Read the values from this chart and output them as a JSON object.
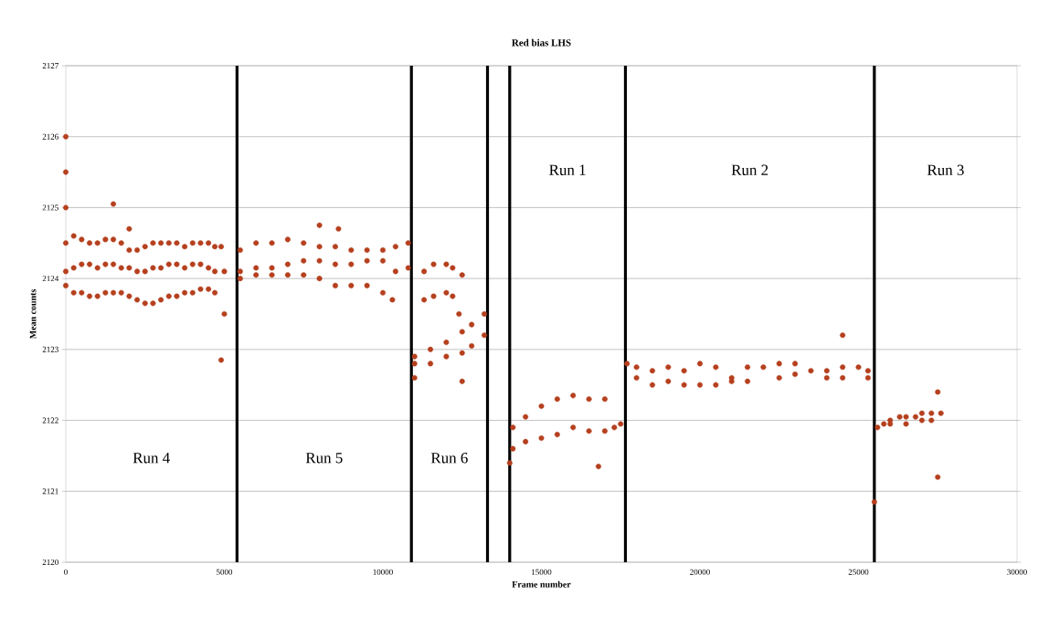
{
  "chart_data": {
    "type": "scatter",
    "title": "Red bias LHS",
    "xlabel": "Frame number",
    "ylabel": "Mean counts",
    "xlim": [
      0,
      30000
    ],
    "xticks": [
      0,
      5000,
      10000,
      15000,
      20000,
      25000,
      30000
    ],
    "ylim": [
      2120,
      2127
    ],
    "yticks": [
      2120,
      2121,
      2122,
      2123,
      2124,
      2125,
      2126,
      2127
    ],
    "grid": "y",
    "marker": "circle",
    "series": [
      {
        "color": "#b5401e",
        "x": [
          0,
          0,
          0,
          0,
          500,
          1000,
          1500,
          2000,
          2500,
          3000,
          3500,
          4000,
          4500,
          4900,
          0,
          500,
          1000,
          1500,
          2000,
          2500,
          3000,
          3500,
          4000,
          4500,
          5000,
          0,
          500,
          1000,
          1500,
          2000,
          2500,
          3000,
          3500,
          4000,
          4500,
          5000,
          1500,
          2000,
          4900,
          5500,
          6000,
          7000,
          8000,
          9000,
          10000,
          10800,
          5500,
          6500,
          7500,
          8500,
          9500,
          10800,
          5500,
          6500,
          7500,
          8500,
          9500,
          10300,
          8000,
          8600,
          11000,
          11300,
          12000,
          12500,
          11300,
          12000,
          12400,
          11000,
          12000,
          13200,
          11000,
          11500,
          12500,
          13200,
          12500,
          14100,
          15000,
          16000,
          17000,
          14100,
          15000,
          16000,
          17000,
          17500,
          16800,
          14000,
          17700,
          18500,
          19000,
          20000,
          21000,
          22000,
          23000,
          24000,
          24500,
          25300,
          18000,
          19500,
          20500,
          21500,
          22500,
          24000,
          25300,
          24500,
          25600,
          26000,
          26500,
          27000,
          27600,
          26000,
          27000,
          27500,
          27500,
          25500,
          250,
          750,
          1250,
          1750,
          2250,
          2750,
          3250,
          3750,
          4250,
          4700,
          250,
          750,
          1250,
          1750,
          2250,
          2750,
          3250,
          3750,
          4250,
          4700,
          250,
          750,
          1250,
          1750,
          2250,
          2750,
          3250,
          3750,
          4250,
          4700,
          6500,
          7500,
          8500,
          9500,
          10400,
          6000,
          7000,
          8000,
          9000,
          10000,
          10400,
          6000,
          7000,
          8000,
          9000,
          10000,
          11600,
          12200,
          11600,
          12200,
          11500,
          12500,
          12800,
          12000,
          12800,
          14500,
          15500,
          16500,
          14500,
          15500,
          16500,
          17300,
          18000,
          19500,
          20500,
          21500,
          22500,
          23500,
          25000,
          18500,
          19000,
          20000,
          21000,
          23000,
          24500,
          25800,
          26300,
          26800,
          27300,
          26500,
          27300
        ],
        "values": [
          2126,
          2125.5,
          2125,
          2124.5,
          2124.55,
          2124.5,
          2124.55,
          2124.4,
          2124.45,
          2124.5,
          2124.5,
          2124.5,
          2124.5,
          2124.45,
          2124.1,
          2124.2,
          2124.15,
          2124.2,
          2124.15,
          2124.1,
          2124.15,
          2124.2,
          2124.2,
          2124.15,
          2124.1,
          2123.9,
          2123.8,
          2123.75,
          2123.8,
          2123.75,
          2123.65,
          2123.7,
          2123.75,
          2123.8,
          2123.85,
          2123.5,
          2125.05,
          2124.7,
          2122.85,
          2124.4,
          2124.5,
          2124.55,
          2124.45,
          2124.4,
          2124.4,
          2124.5,
          2124.1,
          2124.15,
          2124.25,
          2124.2,
          2124.25,
          2124.15,
          2124.0,
          2124.05,
          2124.05,
          2123.9,
          2123.9,
          2123.7,
          2124.75,
          2124.7,
          2122.8,
          2124.1,
          2124.2,
          2124.05,
          2123.7,
          2123.8,
          2123.5,
          2122.9,
          2123.1,
          2123.5,
          2122.6,
          2122.8,
          2122.95,
          2123.2,
          2122.55,
          2121.9,
          2122.2,
          2122.35,
          2122.3,
          2121.6,
          2121.75,
          2121.9,
          2121.85,
          2121.95,
          2121.35,
          2121.4,
          2122.8,
          2122.7,
          2122.75,
          2122.8,
          2122.6,
          2122.75,
          2122.8,
          2122.7,
          2122.75,
          2122.7,
          2122.6,
          2122.5,
          2122.5,
          2122.55,
          2122.6,
          2122.6,
          2122.6,
          2123.2,
          2121.9,
          2122.0,
          2122.05,
          2122.1,
          2122.1,
          2121.95,
          2122.0,
          2122.4,
          2121.2,
          2120.85,
          2124.6,
          2124.5,
          2124.55,
          2124.5,
          2124.4,
          2124.5,
          2124.5,
          2124.45,
          2124.5,
          2124.45,
          2124.15,
          2124.2,
          2124.2,
          2124.15,
          2124.1,
          2124.15,
          2124.2,
          2124.15,
          2124.2,
          2124.1,
          2123.8,
          2123.75,
          2123.8,
          2123.8,
          2123.7,
          2123.65,
          2123.75,
          2123.8,
          2123.85,
          2123.8,
          2124.5,
          2124.5,
          2124.45,
          2124.4,
          2124.45,
          2124.15,
          2124.2,
          2124.25,
          2124.2,
          2124.25,
          2124.1,
          2124.05,
          2124.05,
          2124.0,
          2123.9,
          2123.8,
          2124.2,
          2124.15,
          2123.75,
          2123.75,
          2123.0,
          2123.25,
          2123.35,
          2122.9,
          2123.05,
          2122.05,
          2122.3,
          2122.3,
          2121.7,
          2121.8,
          2121.85,
          2121.9,
          2122.75,
          2122.7,
          2122.75,
          2122.75,
          2122.8,
          2122.7,
          2122.75,
          2122.5,
          2122.55,
          2122.5,
          2122.55,
          2122.65,
          2122.6,
          2121.95,
          2122.05,
          2122.05,
          2122.1,
          2121.95,
          2122.0
        ]
      }
    ],
    "ref_lines": [
      {
        "axis": "x",
        "value": 5400,
        "color": "#000000"
      },
      {
        "axis": "x",
        "value": 10900,
        "color": "#000000"
      },
      {
        "axis": "x",
        "value": 13300,
        "color": "#000000"
      },
      {
        "axis": "x",
        "value": 14000,
        "color": "#000000"
      },
      {
        "axis": "x",
        "value": 17650,
        "color": "#000000"
      },
      {
        "axis": "x",
        "value": 25500,
        "color": "#000000"
      }
    ],
    "annotations": [
      "Run 4",
      "Run 5",
      "Run 6",
      "Run 1",
      "Run 2",
      "Run 3"
    ]
  }
}
